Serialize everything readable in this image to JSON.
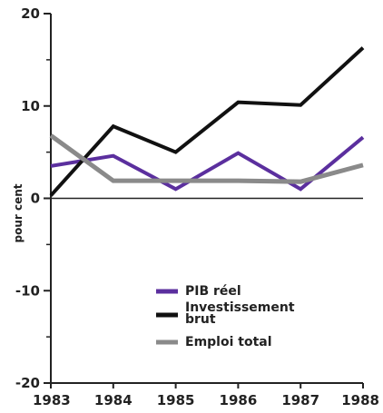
{
  "chart_data": {
    "type": "line",
    "title": "",
    "xlabel": "",
    "ylabel": "pour cent",
    "x": [
      "1983",
      "1984",
      "1985",
      "1986",
      "1987",
      "1988"
    ],
    "ylim": [
      -20,
      20
    ],
    "yticks": [
      "20",
      "10",
      "0",
      "-10",
      "-20"
    ],
    "grid": false,
    "legend_position": "bottom-right",
    "series": [
      {
        "name": "PIB réel",
        "color": "#5b2f9e",
        "values": [
          3.5,
          4.6,
          1.0,
          4.9,
          1.0,
          6.6
        ]
      },
      {
        "name": "Investissement brut",
        "color": "#111111",
        "values": [
          0.3,
          7.8,
          5.0,
          10.4,
          10.1,
          16.3
        ]
      },
      {
        "name": "Emploi total",
        "color": "#8a8a8a",
        "values": [
          6.8,
          1.9,
          1.9,
          1.9,
          1.8,
          3.6
        ]
      }
    ]
  }
}
